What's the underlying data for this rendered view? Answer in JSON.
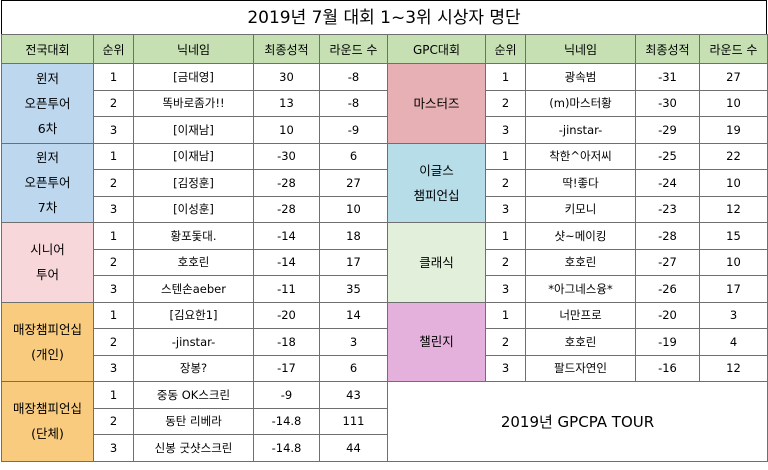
{
  "title": "2019년 7월 대회 1~3위 시상자 명단",
  "headers": {
    "left": [
      "전국대회",
      "순위",
      "닉네임",
      "최종성적",
      "라운드 수"
    ],
    "right": [
      "GPC대회",
      "순위",
      "닉네임",
      "최종성적",
      "라운드 수"
    ]
  },
  "left_groups": [
    {
      "name": [
        "윈저",
        "오픈투어",
        "6차"
      ],
      "color": "#bdd7ee",
      "rows": [
        {
          "rank": "1",
          "nick": "[금대영]",
          "score": "30",
          "rounds": "-8"
        },
        {
          "rank": "2",
          "nick": "똑바로좀가!!",
          "score": "13",
          "rounds": "-8"
        },
        {
          "rank": "3",
          "nick": "[이재남]",
          "score": "10",
          "rounds": "-9"
        }
      ]
    },
    {
      "name": [
        "윈저",
        "오픈투어",
        "7차"
      ],
      "color": "#bdd7ee",
      "rows": [
        {
          "rank": "1",
          "nick": "[이재남]",
          "score": "-30",
          "rounds": "6"
        },
        {
          "rank": "2",
          "nick": "[김정훈]",
          "score": "-28",
          "rounds": "27"
        },
        {
          "rank": "3",
          "nick": "[이성훈]",
          "score": "-28",
          "rounds": "10"
        }
      ]
    },
    {
      "name": [
        "시니어",
        "투어"
      ],
      "color": "#f8d7da",
      "rows": [
        {
          "rank": "1",
          "nick": "황포돛대.",
          "score": "-14",
          "rounds": "18"
        },
        {
          "rank": "2",
          "nick": "호호린",
          "score": "-14",
          "rounds": "17"
        },
        {
          "rank": "3",
          "nick": "스텐손aeber",
          "score": "-11",
          "rounds": "35"
        }
      ]
    },
    {
      "name": [
        "매장챔피언십",
        "(개인)"
      ],
      "color": "#f8cb7e",
      "rows": [
        {
          "rank": "1",
          "nick": "[김요한1]",
          "score": "-20",
          "rounds": "14"
        },
        {
          "rank": "2",
          "nick": "-jinstar-",
          "score": "-18",
          "rounds": "3"
        },
        {
          "rank": "3",
          "nick": "장봉?",
          "score": "-17",
          "rounds": "6"
        }
      ]
    },
    {
      "name": [
        "매장챔피언십",
        "(단체)"
      ],
      "color": "#f8cb7e",
      "rows": [
        {
          "rank": "1",
          "nick": "중동 OK스크린",
          "score": "-9",
          "rounds": "43"
        },
        {
          "rank": "2",
          "nick": "동탄 리베라",
          "score": "-14.8",
          "rounds": "111"
        },
        {
          "rank": "3",
          "nick": "신봉 굿샷스크린",
          "score": "-14.8",
          "rounds": "44"
        }
      ]
    }
  ],
  "right_groups": [
    {
      "name": [
        "마스터즈"
      ],
      "color": "#e6b0b4",
      "rows": [
        {
          "rank": "1",
          "nick": "광속범",
          "score": "-31",
          "rounds": "27"
        },
        {
          "rank": "2",
          "nick": "(m)마스터황",
          "score": "-30",
          "rounds": "10"
        },
        {
          "rank": "3",
          "nick": "-jinstar-",
          "score": "-29",
          "rounds": "19"
        }
      ]
    },
    {
      "name": [
        "이글스",
        "챔피언십"
      ],
      "color": "#b7dde8",
      "rows": [
        {
          "rank": "1",
          "nick": "착한^아저씨",
          "score": "-25",
          "rounds": "22"
        },
        {
          "rank": "2",
          "nick": "딱!좋다",
          "score": "-24",
          "rounds": "10"
        },
        {
          "rank": "3",
          "nick": "키모니",
          "score": "-23",
          "rounds": "12"
        }
      ]
    },
    {
      "name": [
        "클래식"
      ],
      "color": "#e2efda",
      "rows": [
        {
          "rank": "1",
          "nick": "샷~메이킹",
          "score": "-28",
          "rounds": "15"
        },
        {
          "rank": "2",
          "nick": "호호린",
          "score": "-27",
          "rounds": "10"
        },
        {
          "rank": "3",
          "nick": "*아그네스융*",
          "score": "-26",
          "rounds": "17"
        }
      ]
    },
    {
      "name": [
        "챌린지"
      ],
      "color": "#e4b1dc",
      "rows": [
        {
          "rank": "1",
          "nick": "너만프로",
          "score": "-20",
          "rounds": "3"
        },
        {
          "rank": "2",
          "nick": "호호린",
          "score": "-19",
          "rounds": "4"
        },
        {
          "rank": "3",
          "nick": "팔드자연인",
          "score": "-16",
          "rounds": "12"
        }
      ]
    }
  ],
  "banner": "2019년 GPCPA TOUR"
}
